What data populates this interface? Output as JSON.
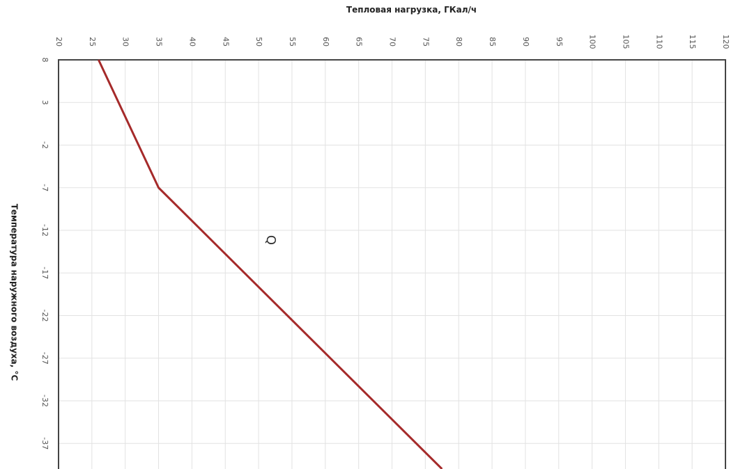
{
  "chart_data": {
    "type": "line",
    "orientation": "rotated",
    "x_axis": {
      "label": "Тепловая нагрузка, ГКал/ч",
      "lim": [
        20,
        120
      ],
      "ticks": [
        20,
        25,
        30,
        35,
        40,
        45,
        50,
        55,
        60,
        65,
        70,
        75,
        80,
        85,
        90,
        95,
        100,
        105,
        110,
        115,
        120
      ],
      "position": "top"
    },
    "y_axis": {
      "label": "Температура наружного воздуха, °С",
      "lim": [
        8,
        -40
      ],
      "ticks": [
        8,
        3,
        -2,
        -7,
        -12,
        -17,
        -22,
        -27,
        -32,
        -37
      ],
      "position": "left"
    },
    "grid": true,
    "series": [
      {
        "name": "Q",
        "color": "#a52a2a",
        "points": [
          {
            "t": 8,
            "q": 26
          },
          {
            "t": -7,
            "q": 35
          },
          {
            "t": -40,
            "q": 77.5
          }
        ]
      }
    ]
  }
}
